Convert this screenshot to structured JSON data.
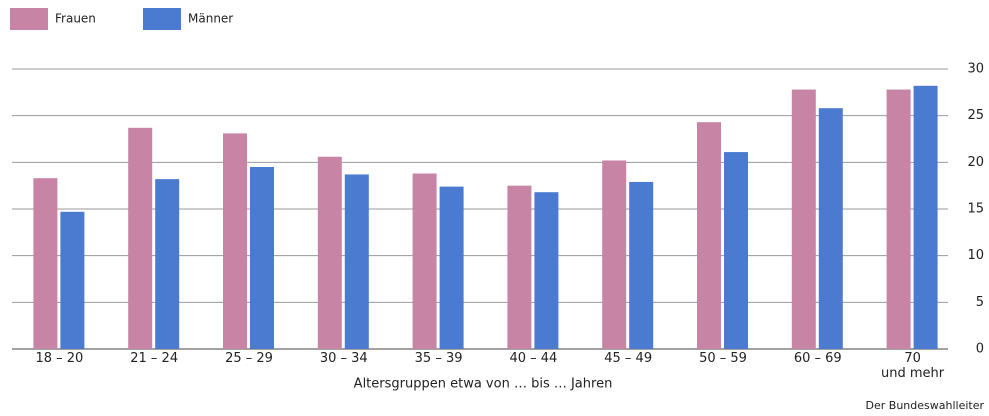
{
  "chart_data": {
    "type": "bar",
    "x_label": "Altersgruppen etwa von … bis … Jahren",
    "source": "Der Bundeswahlleiter",
    "categories": [
      "18 – 20",
      "21 – 24",
      "25 – 29",
      "30 – 34",
      "35 – 39",
      "40 – 44",
      "45 – 49",
      "50 – 59",
      "60 – 69",
      "70\nund mehr"
    ],
    "series": [
      {
        "name": "Frauen",
        "color": "#c784a5",
        "values": [
          18.3,
          23.7,
          23.1,
          20.6,
          18.8,
          17.5,
          20.2,
          24.3,
          27.8,
          27.8
        ]
      },
      {
        "name": "Männer",
        "color": "#4a7bd0",
        "values": [
          14.7,
          18.2,
          19.5,
          18.7,
          17.4,
          16.8,
          17.9,
          21.1,
          25.8,
          28.2
        ]
      }
    ],
    "ylim": [
      0,
      30
    ],
    "yticks": [
      0,
      5,
      10,
      15,
      20,
      25,
      30
    ],
    "grid": true
  }
}
